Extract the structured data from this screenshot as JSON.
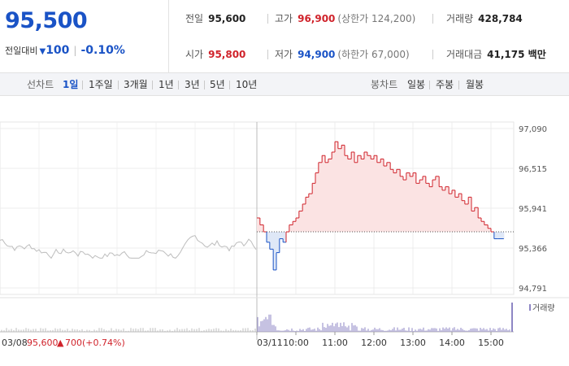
{
  "summary": {
    "price": "95,500",
    "change_label": "전일대비",
    "change_direction": "down",
    "change_amount": "100",
    "change_rate": "-0.10%"
  },
  "stats": {
    "prev_close_label": "전일",
    "prev_close": "95,600",
    "high_label": "고가",
    "high": "96,900",
    "upper_limit": "(상한가 124,200)",
    "volume_label": "거래량",
    "volume": "428,784",
    "open_label": "시가",
    "open": "95,800",
    "low_label": "저가",
    "low": "94,900",
    "lower_limit": "(하한가 67,000)",
    "amount_label": "거래대금",
    "amount": "41,175 백만"
  },
  "toolbar": {
    "line_chart_label": "선차트",
    "periods": [
      "1일",
      "1주일",
      "3개월",
      "1년",
      "3년",
      "5년",
      "10년"
    ],
    "active_period": "1일",
    "candle_label": "봉차트",
    "candles": [
      "일봉",
      "주봉",
      "월봉"
    ]
  },
  "colors": {
    "up": "#d0232b",
    "down": "#1a53c6",
    "prev_day_line": "#bdbdbd",
    "volume": "#8e86c4"
  },
  "chart_data": {
    "type": "line",
    "baseline": 95600,
    "y_ticks": [
      "97,090",
      "96,515",
      "95,941",
      "95,366",
      "94,791"
    ],
    "y_tick_values": [
      97090,
      96515,
      95941,
      95366,
      94791
    ],
    "ylim": [
      94791,
      97090
    ],
    "x_ticks": [
      "03/11",
      "10:00",
      "11:00",
      "12:00",
      "13:00",
      "14:00",
      "15:00"
    ],
    "prev_day": {
      "date": "03/08",
      "close": "95,600",
      "change_symbol": "▲",
      "change": "700",
      "change_rate": "(+0.74%)"
    },
    "today": {
      "time": [
        9.0,
        9.08,
        9.17,
        9.25,
        9.33,
        9.42,
        9.5,
        9.58,
        9.67,
        9.75,
        9.83,
        9.92,
        10.0,
        10.08,
        10.17,
        10.25,
        10.33,
        10.42,
        10.5,
        10.58,
        10.67,
        10.75,
        10.83,
        10.92,
        11.0,
        11.08,
        11.17,
        11.25,
        11.33,
        11.42,
        11.5,
        11.58,
        11.67,
        11.75,
        11.83,
        11.92,
        12.0,
        12.08,
        12.17,
        12.25,
        12.33,
        12.42,
        12.5,
        12.58,
        12.67,
        12.75,
        12.83,
        12.92,
        13.0,
        13.08,
        13.17,
        13.25,
        13.33,
        13.42,
        13.5,
        13.58,
        13.67,
        13.75,
        13.83,
        13.92,
        14.0,
        14.08,
        14.17,
        14.25,
        14.33,
        14.42,
        14.5,
        14.58,
        14.67,
        14.75,
        14.83,
        14.92,
        15.0,
        15.08,
        15.17,
        15.25,
        15.33
      ],
      "price": [
        95800,
        95700,
        95600,
        95450,
        95350,
        95050,
        95300,
        95500,
        95450,
        95600,
        95700,
        95750,
        95800,
        95900,
        96000,
        96100,
        96150,
        96300,
        96450,
        96600,
        96700,
        96600,
        96650,
        96750,
        96900,
        96800,
        96850,
        96700,
        96650,
        96750,
        96600,
        96700,
        96650,
        96750,
        96700,
        96650,
        96700,
        96600,
        96650,
        96550,
        96600,
        96500,
        96450,
        96500,
        96400,
        96350,
        96450,
        96400,
        96450,
        96300,
        96350,
        96400,
        96300,
        96250,
        96350,
        96400,
        96250,
        96200,
        96250,
        96150,
        96200,
        96100,
        96150,
        96050,
        96000,
        96100,
        95900,
        95950,
        95800,
        95750,
        95700,
        95650,
        95600,
        95500,
        95500,
        95500,
        95500
      ]
    },
    "volume_label": "거래량"
  }
}
